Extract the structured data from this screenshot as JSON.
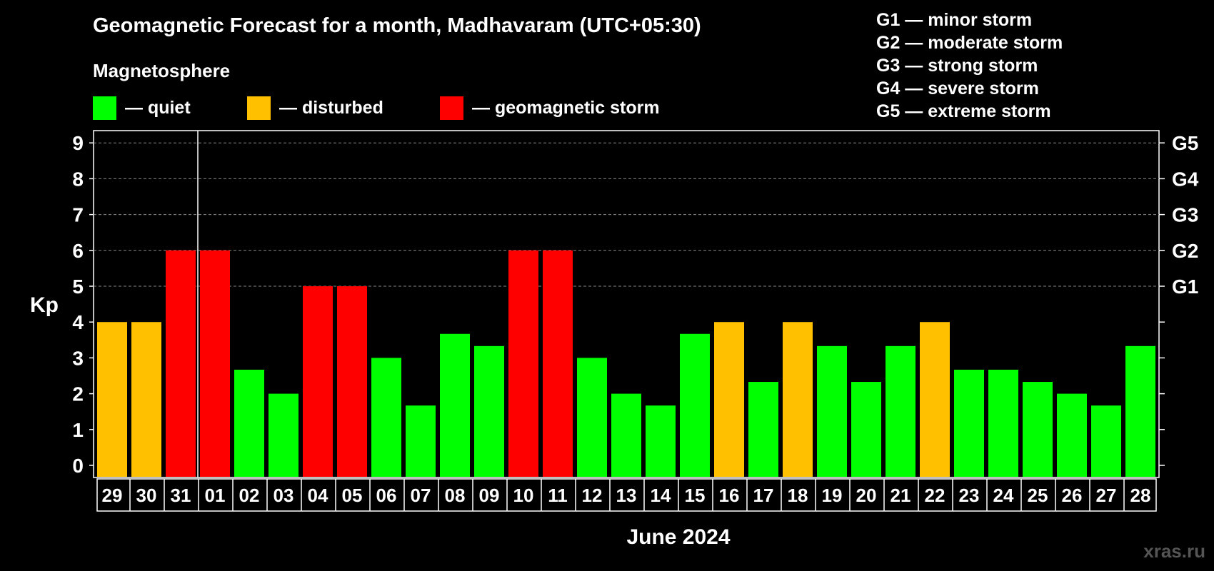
{
  "header": {
    "title": "Geomagnetic Forecast for a month, Madhavaram (UTC+05:30)",
    "subtitle": "Magnetosphere",
    "legend": [
      {
        "label": "— quiet",
        "color": "#00ff00"
      },
      {
        "label": "— disturbed",
        "color": "#ffc000"
      },
      {
        "label": "— geomagnetic storm",
        "color": "#ff0000"
      }
    ],
    "storm_levels": [
      "G1 — minor storm",
      "G2 — moderate storm",
      "G3 — strong storm",
      "G4 — severe storm",
      "G5 — extreme storm"
    ],
    "watermark": "xras.ru"
  },
  "chart_data": {
    "type": "bar",
    "ylabel": "Kp",
    "xlabel": "June 2024",
    "ylim": [
      0,
      9
    ],
    "yticks": [
      0,
      1,
      2,
      3,
      4,
      5,
      6,
      7,
      8,
      9
    ],
    "right_axis": [
      {
        "kp": 5,
        "label": "G1"
      },
      {
        "kp": 6,
        "label": "G2"
      },
      {
        "kp": 7,
        "label": "G3"
      },
      {
        "kp": 8,
        "label": "G4"
      },
      {
        "kp": 9,
        "label": "G5"
      }
    ],
    "grid": "dashed horizontal at Kp 5-9",
    "month_start_index": 3,
    "categories": [
      "29",
      "30",
      "31",
      "01",
      "02",
      "03",
      "04",
      "05",
      "06",
      "07",
      "08",
      "09",
      "10",
      "11",
      "12",
      "13",
      "14",
      "15",
      "16",
      "17",
      "18",
      "19",
      "20",
      "21",
      "22",
      "23",
      "24",
      "25",
      "26",
      "27",
      "28"
    ],
    "values": [
      4,
      4,
      6,
      6,
      2.67,
      2,
      5,
      5,
      3,
      1.67,
      3.67,
      3.33,
      6,
      6,
      3,
      2,
      1.67,
      3.67,
      4,
      2.33,
      4,
      3.33,
      2.33,
      3.33,
      4,
      2.67,
      2.67,
      2.33,
      2,
      1.67,
      3.33
    ],
    "status": [
      "disturbed",
      "disturbed",
      "storm",
      "storm",
      "quiet",
      "quiet",
      "storm",
      "storm",
      "quiet",
      "quiet",
      "quiet",
      "quiet",
      "storm",
      "storm",
      "quiet",
      "quiet",
      "quiet",
      "quiet",
      "disturbed",
      "quiet",
      "disturbed",
      "quiet",
      "quiet",
      "quiet",
      "disturbed",
      "quiet",
      "quiet",
      "quiet",
      "quiet",
      "quiet",
      "quiet"
    ],
    "colors": {
      "quiet": "#00ff00",
      "disturbed": "#ffc000",
      "storm": "#ff0000"
    }
  }
}
